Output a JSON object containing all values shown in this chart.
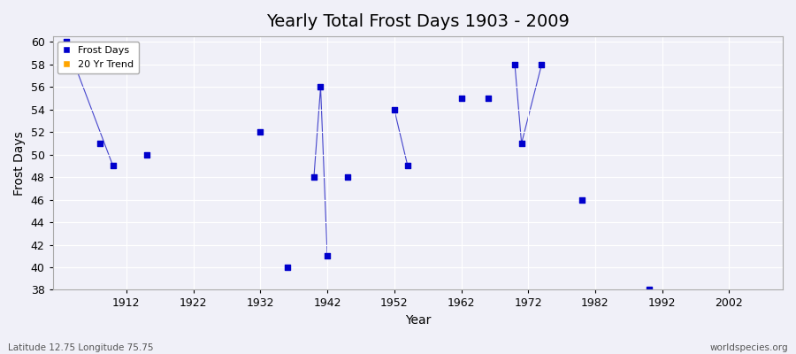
{
  "title": "Yearly Total Frost Days 1903 - 2009",
  "xlabel": "Year",
  "ylabel": "Frost Days",
  "xlim": [
    1901,
    2010
  ],
  "ylim": [
    38,
    60.5
  ],
  "yticks": [
    38,
    40,
    42,
    44,
    46,
    48,
    50,
    52,
    54,
    56,
    58,
    60
  ],
  "xticks": [
    1912,
    1922,
    1932,
    1942,
    1952,
    1962,
    1972,
    1982,
    1992,
    2002
  ],
  "frost_days": [
    [
      1903,
      60
    ],
    [
      1908,
      51
    ],
    [
      1910,
      49
    ],
    [
      1915,
      50
    ],
    [
      1932,
      52
    ],
    [
      1936,
      40
    ],
    [
      1940,
      48
    ],
    [
      1941,
      56
    ],
    [
      1942,
      41
    ],
    [
      1945,
      48
    ],
    [
      1952,
      54
    ],
    [
      1954,
      49
    ],
    [
      1962,
      55
    ],
    [
      1966,
      55
    ],
    [
      1970,
      58
    ],
    [
      1971,
      51
    ],
    [
      1974,
      58
    ],
    [
      1980,
      46
    ],
    [
      1990,
      38
    ]
  ],
  "connected_segments": [
    [
      [
        1940,
        48
      ],
      [
        1941,
        56
      ],
      [
        1942,
        41
      ]
    ],
    [
      [
        1952,
        54
      ],
      [
        1954,
        49
      ]
    ],
    [
      [
        1970,
        58
      ],
      [
        1971,
        51
      ],
      [
        1974,
        58
      ]
    ]
  ],
  "dot_color": "#0000cc",
  "line_color": "#4444cc",
  "plot_bg_color": "#f0f0f8",
  "fig_bg_color": "#f0f0f8",
  "grid_color": "#ffffff",
  "title_fontsize": 14,
  "axis_fontsize": 10,
  "tick_fontsize": 9,
  "footer_left": "Latitude 12.75 Longitude 75.75",
  "footer_right": "worldspecies.org",
  "legend_labels": [
    "Frost Days",
    "20 Yr Trend"
  ],
  "legend_colors": [
    "#0000cc",
    "#ffa500"
  ]
}
